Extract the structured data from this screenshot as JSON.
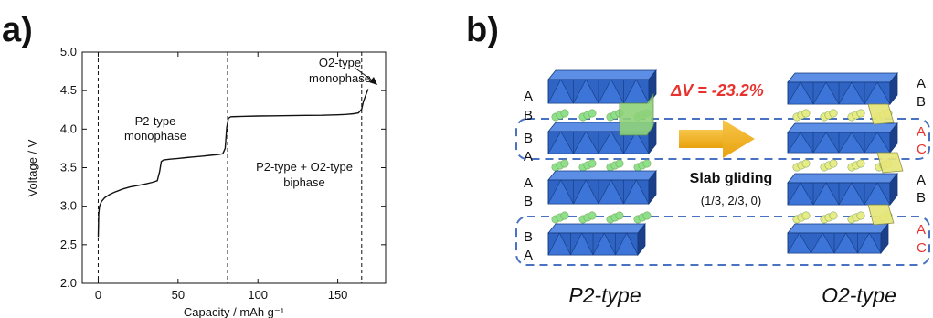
{
  "panel_a": {
    "label": "a)",
    "chart_data": {
      "type": "line",
      "xlabel": "Capacity / mAh g⁻¹",
      "ylabel": "Voltage / V",
      "xlim": [
        -10,
        180
      ],
      "ylim": [
        2.0,
        5.0
      ],
      "xticks": [
        0,
        50,
        100,
        150
      ],
      "yticks": [
        2.0,
        2.5,
        3.0,
        3.5,
        4.0,
        4.5,
        5.0
      ],
      "grid": false,
      "phase_boundaries": [
        0,
        81,
        165
      ],
      "series": [
        {
          "x": [
            0,
            0.3,
            0.8,
            2,
            4,
            7,
            10,
            15,
            20,
            25,
            30,
            34,
            37,
            38.5,
            39.5,
            41,
            45,
            50,
            55,
            60,
            65,
            70,
            75,
            78,
            79.5,
            80.5,
            81.5,
            83,
            90,
            100,
            110,
            120,
            130,
            140,
            150,
            155,
            160,
            163,
            165,
            166,
            167.5,
            169
          ],
          "y": [
            2.6,
            2.9,
            3.0,
            3.06,
            3.11,
            3.15,
            3.18,
            3.22,
            3.25,
            3.27,
            3.29,
            3.31,
            3.33,
            3.45,
            3.58,
            3.6,
            3.61,
            3.62,
            3.63,
            3.64,
            3.65,
            3.66,
            3.67,
            3.68,
            3.75,
            4.02,
            4.14,
            4.16,
            4.165,
            4.17,
            4.172,
            4.175,
            4.178,
            4.18,
            4.185,
            4.19,
            4.2,
            4.21,
            4.26,
            4.35,
            4.44,
            4.52
          ]
        }
      ],
      "annotations": {
        "p2_region": [
          "P2-type",
          "monophase"
        ],
        "biphase_region": [
          "P2-type + O2-type",
          "biphase"
        ],
        "o2_region": [
          "O2-type",
          "monophase"
        ]
      }
    }
  },
  "panel_b": {
    "label": "b)",
    "delta_v": "ΔV = -23.2%",
    "glide_title": "Slab gliding",
    "glide_vector": "(1/3, 2/3, 0)",
    "left_letters": [
      "A",
      "B",
      "B",
      "A",
      "A",
      "B",
      "B",
      "A"
    ],
    "right_letters": [
      "A",
      "B",
      "A",
      "C",
      "A",
      "B",
      "A",
      "C"
    ],
    "left_type": "P2-type",
    "right_type": "O2-type",
    "colors": {
      "octahedra": "#2f63c4",
      "octahedra_top": "#5d8ee6",
      "octahedra_dark": "#1c3f8a",
      "prism_green": "#8ed27a",
      "prism_yellow": "#e6e67a",
      "sodium_green": "#8fe08a",
      "sodium_yellow": "#e7ec86",
      "arrow": "#f2b21c",
      "dashed_box": "#4a72c2",
      "red": "#e8322d"
    }
  }
}
